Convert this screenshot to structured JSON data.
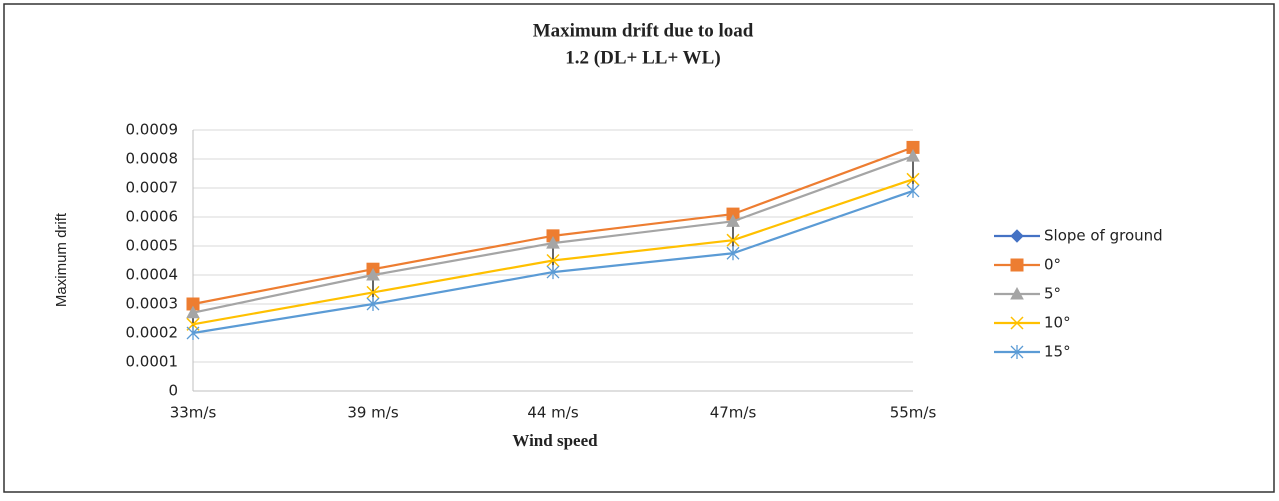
{
  "chart_data": {
    "type": "line",
    "title": [
      "Maximum drift due to load",
      "1.2 (DL+ LL+ WL)"
    ],
    "x_label": "Wind speed",
    "y_label": "Maximum drift",
    "categories": [
      "33m/s",
      "39 m/s",
      "44 m/s",
      "47m/s",
      "55m/s"
    ],
    "series": [
      {
        "name": "Slope of ground",
        "color": "#4472c4",
        "marker": "diamond",
        "values": [
          null,
          null,
          null,
          null,
          null
        ]
      },
      {
        "name": "0°",
        "color": "#ed7d31",
        "marker": "square",
        "values": [
          0.0003,
          0.00042,
          0.000535,
          0.00061,
          0.00084
        ]
      },
      {
        "name": "5°",
        "color": "#a5a5a5",
        "marker": "triangle",
        "values": [
          0.00027,
          0.0004,
          0.00051,
          0.000585,
          0.00081
        ]
      },
      {
        "name": "10°",
        "color": "#ffc000",
        "marker": "x",
        "values": [
          0.00023,
          0.00034,
          0.00045,
          0.00052,
          0.00073
        ]
      },
      {
        "name": "15°",
        "color": "#5b9bd5",
        "marker": "star",
        "values": [
          0.0002,
          0.0003,
          0.00041,
          0.000475,
          0.00069
        ]
      }
    ],
    "ylim": [
      0,
      0.0009
    ],
    "yticks": [
      0,
      0.0001,
      0.0002,
      0.0003,
      0.0004,
      0.0005,
      0.0006,
      0.0007,
      0.0008,
      0.0009
    ],
    "grid": true,
    "high_low_lines": true,
    "legend": "right"
  }
}
